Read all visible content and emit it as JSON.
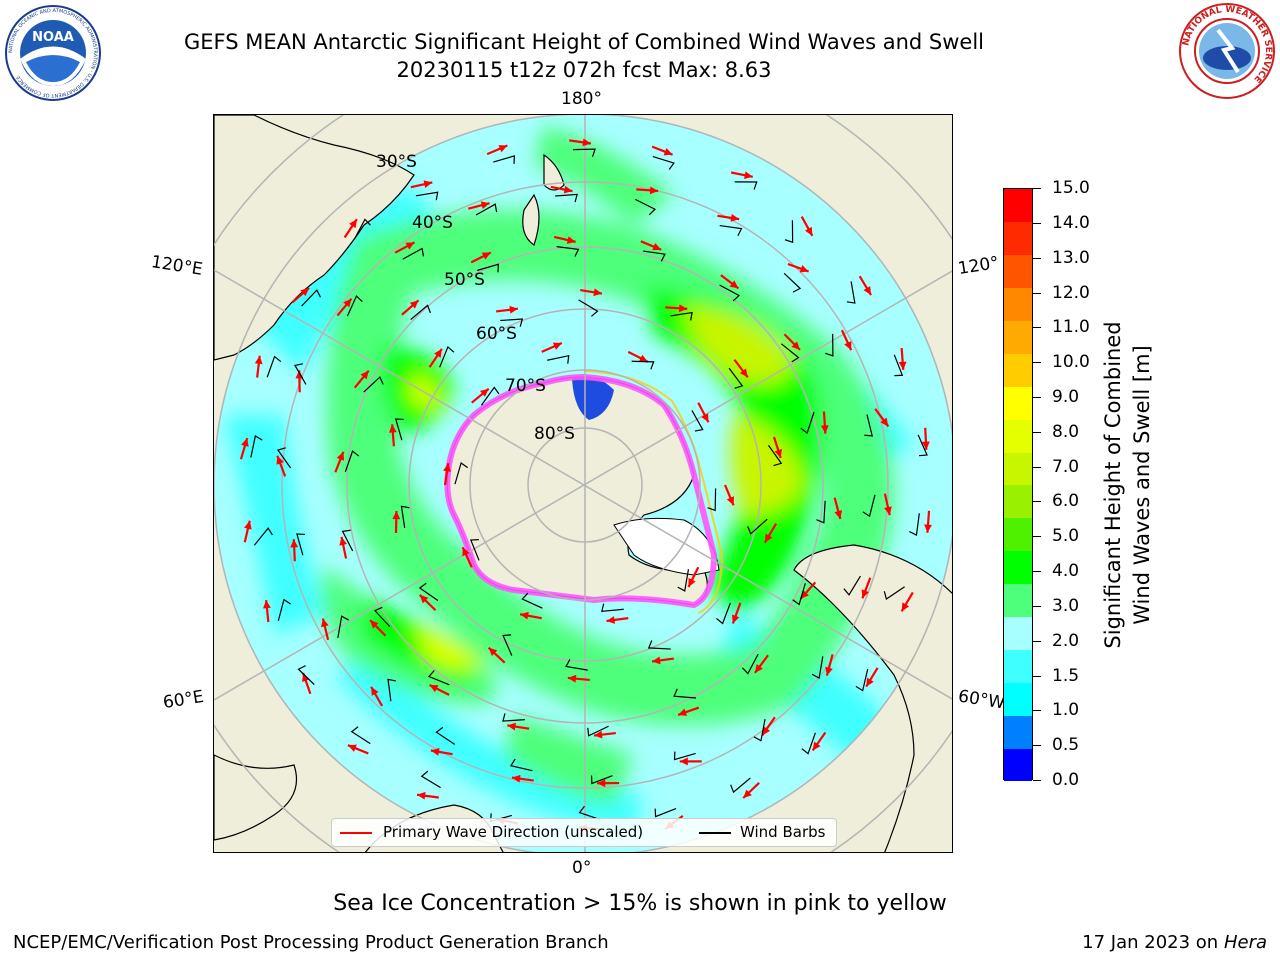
{
  "header": {
    "title_line1": "GEFS MEAN Antarctic Significant Height of Combined Wind Waves and Swell",
    "title_line2": "20230115 t12z 072h fcst   Max: 8.63"
  },
  "logos": {
    "noaa": {
      "text": "NOAA",
      "ring_text": "NATIONAL OCEANIC AND ATMOSPHERIC ADMINISTRATION · U.S. DEPARTMENT OF COMMERCE"
    },
    "nws": {
      "ring_text": "NATIONAL WEATHER SERVICE"
    }
  },
  "map": {
    "longitude_labels": {
      "top": "180°",
      "upper_left": "120°E",
      "upper_right": "120°",
      "lower_left": "60°E",
      "lower_right": "60°W",
      "bottom": "0°"
    },
    "latitude_labels": [
      "30°S",
      "40°S",
      "50°S",
      "60°S",
      "70°S",
      "80°S"
    ],
    "colors": {
      "land": "#efeedb",
      "ocean_base": "#a7ffff",
      "coast": "#000000",
      "grid": "#b4b4b4",
      "wave_arrow": "#ff0000",
      "wind_barb": "#000000"
    }
  },
  "legend": {
    "primary_wave_label": "Primary Wave Direction (unscaled)",
    "wind_barbs_label": "Wind Barbs"
  },
  "colorbar": {
    "title_line1": "Significant Height of Combined",
    "title_line2": "Wind Waves and Swell [m]",
    "tick_labels": [
      "15.0",
      "14.0",
      "13.0",
      "12.0",
      "11.0",
      "10.0",
      "9.0",
      "8.0",
      "7.0",
      "6.0",
      "5.0",
      "4.0",
      "3.0",
      "2.0",
      "1.5",
      "1.0",
      "0.5",
      "0.0"
    ],
    "colors": [
      "#0000ff",
      "#007fff",
      "#00ffff",
      "#3fffff",
      "#a7ffff",
      "#4dff7a",
      "#00ff00",
      "#4ff100",
      "#99f000",
      "#c8f500",
      "#e5ff00",
      "#ffff00",
      "#ffcc00",
      "#ffaa00",
      "#ff8800",
      "#ff5500",
      "#ff2a00",
      "#ff0000"
    ]
  },
  "caption": "Sea Ice Concentration > 15% is shown in pink to yellow",
  "footer": {
    "left": "NCEP/EMC/Verification Post Processing Product Generation Branch",
    "right_prefix": "17 Jan 2023 on ",
    "right_machine": "Hera"
  }
}
